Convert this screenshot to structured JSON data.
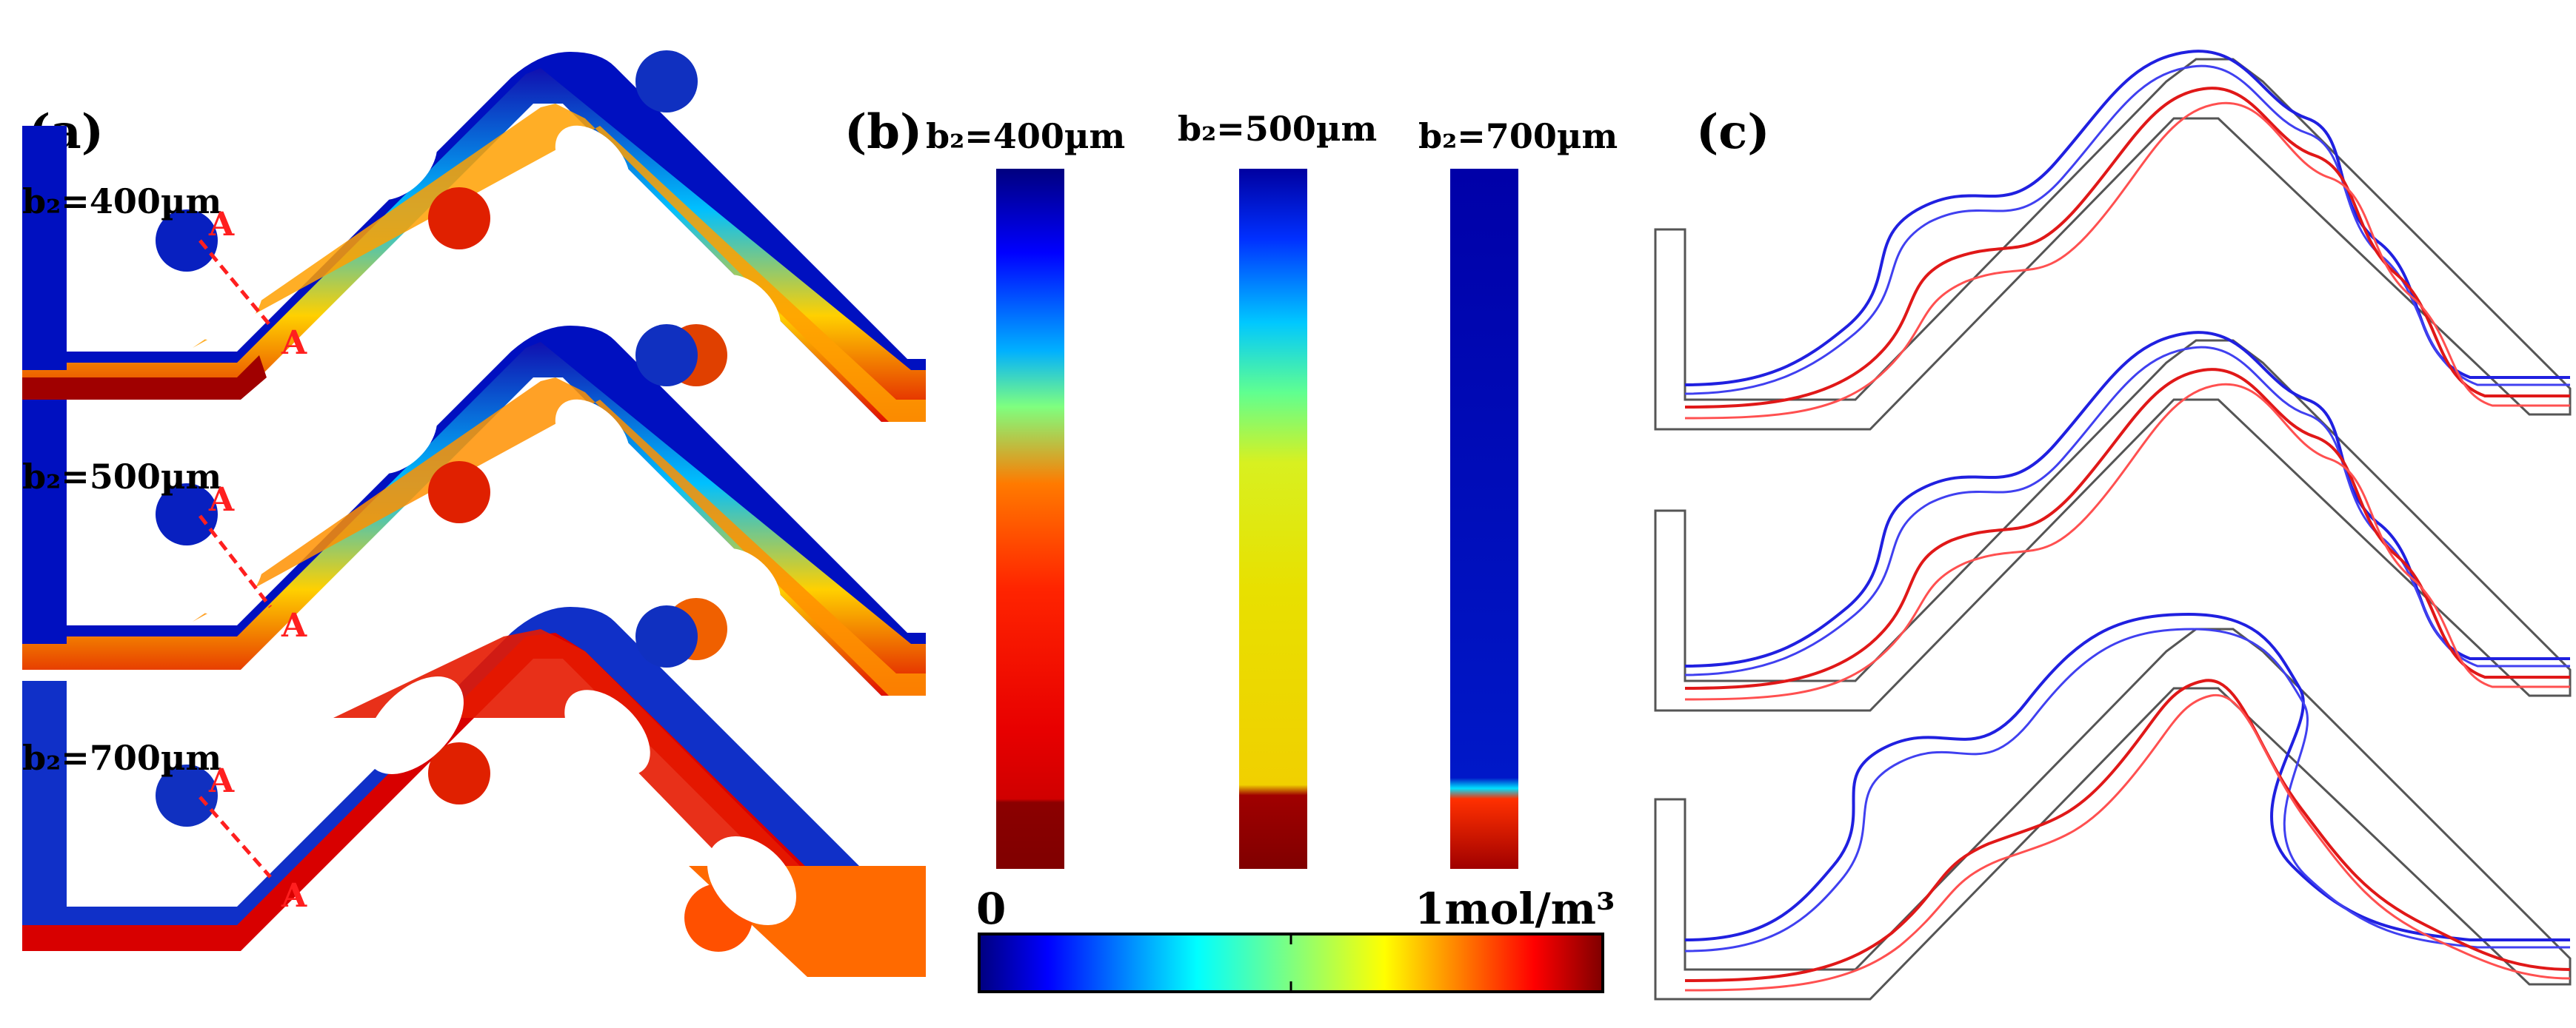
{
  "panels": {
    "a": {
      "label": "(a)",
      "rows": [
        {
          "b_label": "b₂=400µm",
          "section_marker": "A"
        },
        {
          "b_label": "b₂=500µm",
          "section_marker": "A"
        },
        {
          "b_label": "b₂=700µm",
          "section_marker": "A"
        }
      ]
    },
    "b": {
      "label": "(b)",
      "columns": [
        {
          "b_label": "b₂=400µm"
        },
        {
          "b_label": "b₂=500µm"
        },
        {
          "b_label": "b₂=700µm"
        }
      ],
      "colorbar": {
        "min_label": "0",
        "max_label": "1mol/m³",
        "min": 0,
        "max": 1
      }
    },
    "c": {
      "label": "(c)",
      "streamline_colors": {
        "upper": "#1f1fd6",
        "lower": "#e11d1d"
      }
    }
  },
  "colors": {
    "jet_low": "#00007f",
    "jet_high": "#7f0000",
    "outline": "#555555",
    "marker": "#ff1f1f"
  }
}
